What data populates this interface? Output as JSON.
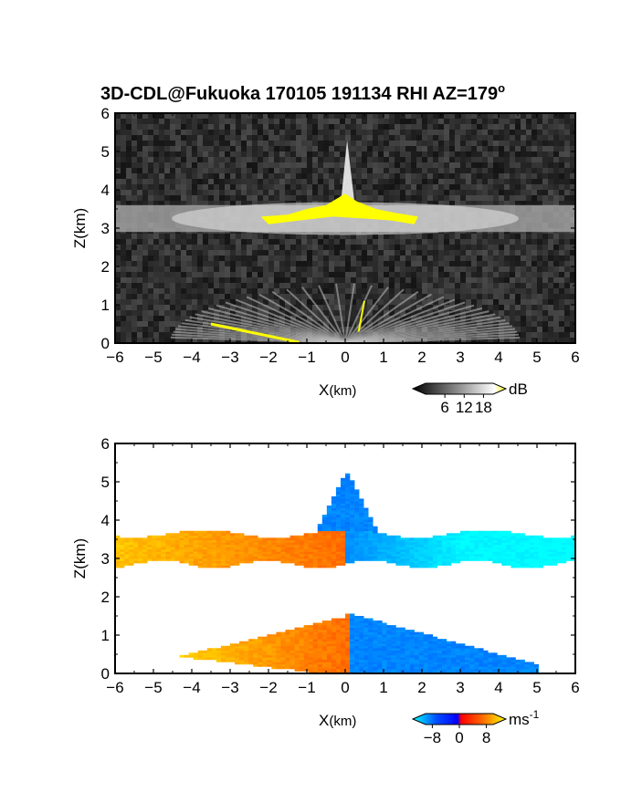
{
  "title": {
    "main": "3D-CDL@Fukuoka 170105 191134 RHI AZ=179",
    "degree_mark": "o"
  },
  "chart_data": [
    {
      "type": "heatmap",
      "field": "backscatter intensity",
      "xlabel_main": "X",
      "xlabel_unit": "(km)",
      "ylabel": "Z(km)",
      "xlim": [
        -6,
        6
      ],
      "ylim": [
        0,
        6
      ],
      "xticks": [
        -6,
        -5,
        -4,
        -3,
        -2,
        -1,
        0,
        1,
        2,
        3,
        4,
        5,
        6
      ],
      "yticks": [
        0,
        1,
        2,
        3,
        4,
        5,
        6
      ],
      "colorbar": {
        "unit": "dB",
        "ticks": [
          6,
          12,
          18
        ],
        "ticks_text": "6 12 18",
        "range": [
          0,
          21
        ],
        "colors": [
          "#000000",
          "#ffffff",
          "#ffff00"
        ]
      },
      "features": [
        {
          "name": "cloud layer",
          "x": [
            -6,
            6
          ],
          "z": [
            2.9,
            3.6
          ],
          "level_db": 10
        },
        {
          "name": "strong echo",
          "x": [
            -2.2,
            1.9
          ],
          "z": [
            3.1,
            4.0
          ],
          "level_db": 19
        },
        {
          "name": "vertical plume",
          "x": [
            -0.1,
            0.3
          ],
          "z": [
            3.6,
            5.3
          ],
          "level_db": 12
        },
        {
          "name": "low fan",
          "x": [
            -3.6,
            3.3
          ],
          "z": [
            0,
            1.1
          ],
          "level_db": 10
        },
        {
          "name": "surface edge",
          "x": [
            -3.5,
            -1.2
          ],
          "z": [
            0,
            0.5
          ],
          "level_db": 19
        }
      ]
    },
    {
      "type": "heatmap",
      "field": "radial velocity",
      "xlabel_main": "X",
      "xlabel_unit": "(km)",
      "ylabel": "Z(km)",
      "xlim": [
        -6,
        6
      ],
      "ylim": [
        0,
        6
      ],
      "xticks": [
        -6,
        -5,
        -4,
        -3,
        -2,
        -1,
        0,
        1,
        2,
        3,
        4,
        5,
        6
      ],
      "yticks": [
        0,
        1,
        2,
        3,
        4,
        5,
        6
      ],
      "colorbar": {
        "unit": "ms",
        "unit_exponent": "-1",
        "ticks": [
          -8,
          0,
          8
        ],
        "ticks_text": "−8 0 8",
        "range": [
          -10,
          10
        ],
        "colors": [
          "#00ffff",
          "#0000ff",
          "#ff0000",
          "#ffff00"
        ]
      },
      "features": [
        {
          "name": "upper layer west",
          "x": [
            -6,
            0
          ],
          "z": [
            2.9,
            3.7
          ],
          "velocity": 6
        },
        {
          "name": "upper layer east",
          "x": [
            0,
            6
          ],
          "z": [
            2.7,
            3.6
          ],
          "velocity": -6
        },
        {
          "name": "central core",
          "x": [
            -0.9,
            0.8
          ],
          "z": [
            3.4,
            5.2
          ],
          "velocity": -7
        },
        {
          "name": "lower layer west",
          "x": [
            -5.3,
            0.1
          ],
          "z": [
            0,
            1.3
          ],
          "velocity": 5
        },
        {
          "name": "lower layer east",
          "x": [
            0.1,
            5.0
          ],
          "z": [
            0,
            1.5
          ],
          "velocity": -7
        }
      ]
    }
  ]
}
